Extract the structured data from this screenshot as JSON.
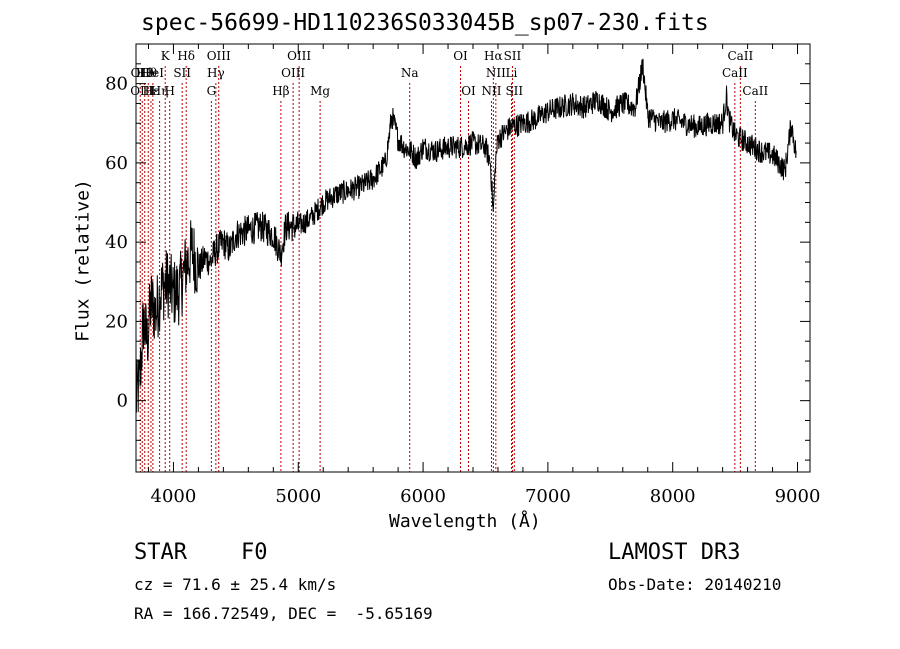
{
  "chart_data": {
    "type": "line",
    "title": "spec-56699-HD110236S033045B_sp07-230.fits",
    "xlabel": "Wavelength (Å)",
    "ylabel": "Flux (relative)",
    "xlim": [
      3700,
      9100
    ],
    "ylim": [
      -18,
      90
    ],
    "xticks": [
      4000,
      5000,
      6000,
      7000,
      8000,
      9000
    ],
    "yticks": [
      0,
      20,
      40,
      60,
      80
    ],
    "x_minor_step": 200,
    "y_minor_step": 5,
    "series": [
      {
        "name": "spectrum",
        "x": [
          3700,
          3730,
          3760,
          3790,
          3820,
          3860,
          3900,
          3950,
          4000,
          4050,
          4100,
          4150,
          4200,
          4250,
          4300,
          4340,
          4400,
          4450,
          4500,
          4600,
          4700,
          4800,
          4860,
          4900,
          5000,
          5100,
          5200,
          5300,
          5400,
          5500,
          5600,
          5700,
          5750,
          5800,
          5850,
          5900,
          5950,
          6000,
          6100,
          6200,
          6300,
          6400,
          6500,
          6540,
          6563,
          6580,
          6600,
          6700,
          6800,
          6900,
          7000,
          7100,
          7200,
          7300,
          7400,
          7500,
          7600,
          7700,
          7760,
          7800,
          7900,
          8000,
          8100,
          8200,
          8300,
          8400,
          8430,
          8450,
          8500,
          8600,
          8700,
          8800,
          8900,
          8950,
          8990
        ],
        "y": [
          0,
          5,
          20,
          15,
          25,
          22,
          28,
          30,
          27,
          28,
          34,
          38,
          33,
          36,
          35,
          38,
          40,
          38,
          42,
          43,
          44,
          42,
          37,
          44,
          44,
          46,
          50,
          52,
          53,
          54,
          56,
          60,
          72,
          66,
          64,
          63,
          61,
          64,
          63,
          64,
          64,
          65,
          64,
          60,
          47,
          60,
          66,
          69,
          70,
          71,
          73,
          74,
          75,
          74,
          76,
          73,
          75,
          74,
          85,
          72,
          70,
          71,
          70,
          69,
          70,
          70,
          77,
          71,
          67,
          65,
          63,
          62,
          58,
          70,
          62
        ],
        "color": "#000000"
      }
    ],
    "line_markers": [
      {
        "x": 3734,
        "tier": 1,
        "label": "OII"
      },
      {
        "x": 3750,
        "tier": 2,
        "label": "OIII"
      },
      {
        "x": 3770,
        "tier": 1,
        "label": "Hθ"
      },
      {
        "x": 3798,
        "tier": 1,
        "label": "Hθ"
      },
      {
        "x": 3820,
        "tier": 2,
        "label": "Hε"
      },
      {
        "x": 3835,
        "tier": 1,
        "label": "HeI"
      },
      {
        "x": 3889,
        "tier": 2,
        "label": "Hη"
      },
      {
        "x": 3934,
        "tier": 0,
        "label": "K"
      },
      {
        "x": 3970,
        "tier": 2,
        "label": "H"
      },
      {
        "x": 4070,
        "tier": 1,
        "label": "SII"
      },
      {
        "x": 4102,
        "tier": 0,
        "label": "Hδ"
      },
      {
        "x": 4304,
        "tier": 2,
        "label": "G"
      },
      {
        "x": 4340,
        "tier": 1,
        "label": "Hγ"
      },
      {
        "x": 4363,
        "tier": 0,
        "label": "OIII"
      },
      {
        "x": 4861,
        "tier": 2,
        "label": "Hβ"
      },
      {
        "x": 4959,
        "tier": 1,
        "label": "OIII"
      },
      {
        "x": 5007,
        "tier": 0,
        "label": "OIII"
      },
      {
        "x": 5175,
        "tier": 2,
        "label": "Mg"
      },
      {
        "x": 5893,
        "tier": 1,
        "label": "Na"
      },
      {
        "x": 6300,
        "tier": 0,
        "label": "OI"
      },
      {
        "x": 6364,
        "tier": 2,
        "label": "OI"
      },
      {
        "x": 6548,
        "tier": 2,
        "label": "NII"
      },
      {
        "x": 6563,
        "tier": 0,
        "label": "Hα"
      },
      {
        "x": 6583,
        "tier": 1,
        "label": "NII"
      },
      {
        "x": 6708,
        "tier": 1,
        "label": "Li"
      },
      {
        "x": 6716,
        "tier": 0,
        "label": "SII"
      },
      {
        "x": 6731,
        "tier": 2,
        "label": "SII"
      },
      {
        "x": 8498,
        "tier": 1,
        "label": "CaII"
      },
      {
        "x": 8542,
        "tier": 0,
        "label": "CaII"
      },
      {
        "x": 8662,
        "tier": 2,
        "label": "CaII"
      }
    ],
    "marker_color": "#c00000"
  },
  "info": {
    "class_label": "STAR",
    "subclass": "F0",
    "survey": "LAMOST DR3",
    "redshift": "cz = 71.6 ± 25.4 km/s",
    "obs_date": "Obs-Date: 20140210",
    "coords": "RA = 166.72549, DEC =  -5.65169"
  }
}
